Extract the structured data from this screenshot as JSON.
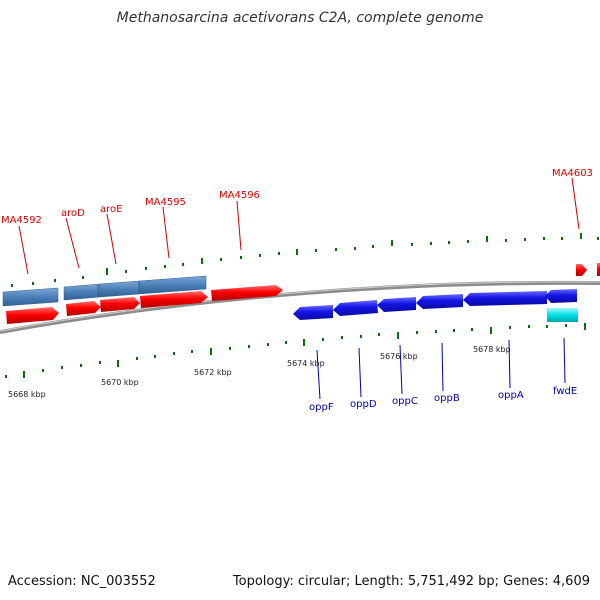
{
  "title": "Methanosarcina acetivorans C2A, complete genome",
  "footer": {
    "accession": "Accession: NC_003552",
    "stats": "Topology: circular; Length: 5,751,492 bp; Genes: 4,609"
  },
  "colors": {
    "forward_gene": "#ff0000",
    "reverse_gene": "#1010e0",
    "gene_block": "#4a80b8",
    "rna_gene": "#00e0e8",
    "backbone": "#888888",
    "tick": "#006400",
    "forward_label": "#dd0000",
    "reverse_label": "#0000aa"
  },
  "scale_labels": [
    "5668 kbp",
    "5670 kbp",
    "5672 kbp",
    "5674 kbp",
    "5676 kbp",
    "5678 kbp"
  ],
  "forward_gene_labels": [
    "MA4592",
    "aroD",
    "aroE",
    "MA4595",
    "MA4596",
    "MA4603"
  ],
  "reverse_gene_labels": [
    "oppF",
    "oppD",
    "oppC",
    "oppB",
    "oppA",
    "fwdE"
  ]
}
